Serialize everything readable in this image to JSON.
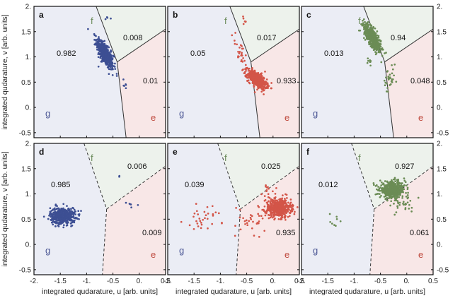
{
  "colors": {
    "g_region": "#ebedf5",
    "e_region": "#f8e7e7",
    "f_region": "#edf2ec",
    "g_points": "#3d4f93",
    "e_points": "#d35548",
    "f_points": "#6b8c55",
    "g_label": "#4a5694",
    "e_label": "#bf4a3e",
    "f_label": "#6a8a5a"
  },
  "chart_data": {
    "type": "scatter",
    "xlabel": "integrated qudarature, u [arb. units]",
    "ylabel": "integrated qudarature, v [arb. units]",
    "xlim": [
      -2.0,
      0.5
    ],
    "ylim": [
      -0.6,
      2.0
    ],
    "x_ticks": [
      "-2.",
      "-1.5",
      "-1.",
      "-0.5",
      "0.",
      "0.5"
    ],
    "y_ticks": [
      "-0.5",
      "0.",
      "0.5",
      "1.",
      "1.5",
      "2."
    ],
    "region_labels": {
      "g": "g",
      "e": "e",
      "f": "f"
    },
    "panels": [
      {
        "label": "a",
        "prepared": "g",
        "boundary": "solid",
        "fractions": {
          "g": "0.982",
          "f": "0.008",
          "e": "0.01"
        },
        "clusters": [
          {
            "state": "g",
            "center": [
              -0.65,
              1.05
            ],
            "spread": [
              0.08,
              0.15
            ],
            "rho": -0.75,
            "count": 500
          },
          {
            "state": "e",
            "center": [
              -0.3,
              0.45
            ],
            "spread": [
              0.05,
              0.08
            ],
            "rho": 0,
            "count": 6
          },
          {
            "state": "f",
            "center": [
              -0.6,
              1.75
            ],
            "spread": [
              0.03,
              0.05
            ],
            "rho": 0,
            "count": 4
          }
        ]
      },
      {
        "label": "b",
        "prepared": "e",
        "boundary": "solid",
        "fractions": {
          "g": "0.05",
          "f": "0.017",
          "e": "0.933"
        },
        "clusters": [
          {
            "state": "e",
            "center": [
              -0.3,
              0.55
            ],
            "spread": [
              0.09,
              0.09
            ],
            "rho": -0.6,
            "count": 500
          },
          {
            "state": "g",
            "center": [
              -0.62,
              1.05
            ],
            "spread": [
              0.08,
              0.18
            ],
            "rho": -0.6,
            "count": 30
          },
          {
            "state": "f",
            "center": [
              -0.55,
              1.7
            ],
            "spread": [
              0.04,
              0.05
            ],
            "rho": 0,
            "count": 6
          }
        ]
      },
      {
        "label": "c",
        "prepared": "f",
        "boundary": "solid",
        "fractions": {
          "g": "0.013",
          "f": "0.94",
          "e": "0.048"
        },
        "clusters": [
          {
            "state": "f",
            "center": [
              -0.65,
              1.38
            ],
            "spread": [
              0.08,
              0.14
            ],
            "rho": -0.75,
            "count": 500
          },
          {
            "state": "e",
            "center": [
              -0.32,
              0.5
            ],
            "spread": [
              0.06,
              0.14
            ],
            "rho": 0,
            "count": 30
          },
          {
            "state": "g",
            "center": [
              -0.72,
              0.9
            ],
            "spread": [
              0.04,
              0.05
            ],
            "rho": 0,
            "count": 8
          }
        ]
      },
      {
        "label": "d",
        "prepared": "g",
        "boundary": "dashed",
        "fractions": {
          "g": "0.985",
          "f": "0.006",
          "e": "0.009"
        },
        "clusters": [
          {
            "state": "g",
            "center": [
              -1.45,
              0.57
            ],
            "spread": [
              0.12,
              0.08
            ],
            "rho": 0,
            "count": 500
          },
          {
            "state": "e",
            "center": [
              -0.22,
              0.75
            ],
            "spread": [
              0.07,
              0.05
            ],
            "rho": 0,
            "count": 6
          },
          {
            "state": "f",
            "center": [
              -0.38,
              1.34
            ],
            "spread": [
              0.02,
              0.02
            ],
            "rho": 0,
            "count": 2
          }
        ]
      },
      {
        "label": "e",
        "prepared": "e",
        "boundary": "dashed",
        "fractions": {
          "g": "0.039",
          "f": "0.025",
          "e": "0.935"
        },
        "clusters": [
          {
            "state": "e",
            "center": [
              0.1,
              0.72
            ],
            "spread": [
              0.12,
              0.09
            ],
            "rho": 0,
            "count": 500
          },
          {
            "state": "g",
            "center": [
              -1.3,
              0.55
            ],
            "spread": [
              0.2,
              0.12
            ],
            "rho": 0,
            "count": 30
          },
          {
            "state": "mix",
            "center": [
              -0.45,
              0.45
            ],
            "spread": [
              0.25,
              0.15
            ],
            "rho": 0,
            "count": 30
          },
          {
            "state": "f",
            "center": [
              -0.1,
              1.05
            ],
            "spread": [
              0.15,
              0.1
            ],
            "rho": 0,
            "count": 15
          }
        ]
      },
      {
        "label": "f",
        "prepared": "f",
        "boundary": "dashed",
        "fractions": {
          "g": "0.012",
          "f": "0.927",
          "e": "0.061"
        },
        "clusters": [
          {
            "state": "f",
            "center": [
              -0.27,
              1.08
            ],
            "spread": [
              0.12,
              0.08
            ],
            "rho": 0,
            "count": 500
          },
          {
            "state": "e",
            "center": [
              -0.1,
              0.82
            ],
            "spread": [
              0.14,
              0.12
            ],
            "rho": 0,
            "count": 35
          },
          {
            "state": "g",
            "center": [
              -1.35,
              0.45
            ],
            "spread": [
              0.06,
              0.1
            ],
            "rho": 0,
            "count": 8
          }
        ]
      }
    ],
    "boundaries": {
      "solid": {
        "gf": [
          [
            -0.82,
            2.0
          ],
          [
            -0.42,
            0.9
          ]
        ],
        "ge": [
          [
            -0.42,
            0.9
          ],
          [
            -0.25,
            -0.6
          ]
        ],
        "fe": [
          [
            -0.42,
            0.9
          ],
          [
            0.5,
            1.55
          ]
        ]
      },
      "dashed": {
        "gf": [
          [
            -1.05,
            2.0
          ],
          [
            -0.62,
            0.7
          ]
        ],
        "ge": [
          [
            -0.62,
            0.7
          ],
          [
            -0.7,
            -0.6
          ]
        ],
        "fe": [
          [
            -0.62,
            0.7
          ],
          [
            0.5,
            1.55
          ]
        ]
      }
    }
  }
}
